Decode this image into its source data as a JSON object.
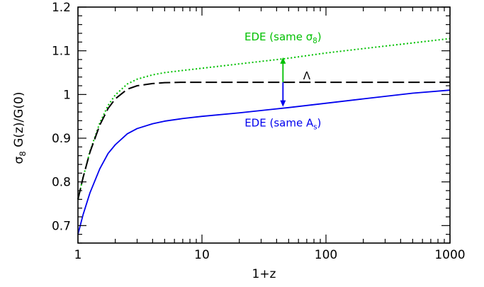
{
  "chart_data": {
    "type": "line",
    "xscale": "log",
    "xlabel": "1+z",
    "ylabel": "σ8 G(z)/G(0)",
    "xlim": [
      1,
      1000
    ],
    "ylim": [
      0.66,
      1.2
    ],
    "xticks": [
      1,
      10,
      100,
      1000
    ],
    "xtick_labels": [
      "1",
      "10",
      "100",
      "1000"
    ],
    "yticks": [
      0.7,
      0.8,
      0.9,
      1.0,
      1.1,
      1.2
    ],
    "ytick_labels": [
      "0.7",
      "0.8",
      "0.9",
      "1",
      "1.1",
      "1.2"
    ],
    "grid": false,
    "series": [
      {
        "name": "EDE (same σ8)",
        "color": "#00c000",
        "style": "dotted",
        "x": [
          1,
          1.1,
          1.25,
          1.5,
          1.75,
          2,
          2.5,
          3,
          4,
          5,
          7,
          10,
          20,
          50,
          100,
          200,
          500,
          1000
        ],
        "y": [
          0.76,
          0.81,
          0.87,
          0.935,
          0.975,
          0.999,
          1.024,
          1.035,
          1.045,
          1.05,
          1.055,
          1.06,
          1.07,
          1.083,
          1.095,
          1.105,
          1.118,
          1.128
        ]
      },
      {
        "name": "Λ",
        "color": "#000000",
        "style": "dashed",
        "x": [
          1,
          1.1,
          1.25,
          1.5,
          1.75,
          2,
          2.5,
          3,
          4,
          5,
          7,
          10,
          20,
          50,
          100,
          200,
          500,
          1000
        ],
        "y": [
          0.76,
          0.81,
          0.868,
          0.93,
          0.968,
          0.99,
          1.012,
          1.02,
          1.025,
          1.027,
          1.028,
          1.028,
          1.028,
          1.028,
          1.028,
          1.028,
          1.028,
          1.028
        ]
      },
      {
        "name": "EDE (same As)",
        "color": "#0000ee",
        "style": "solid",
        "x": [
          1,
          1.1,
          1.25,
          1.5,
          1.75,
          2,
          2.5,
          3,
          4,
          5,
          7,
          10,
          20,
          50,
          100,
          200,
          500,
          1000
        ],
        "y": [
          0.68,
          0.725,
          0.775,
          0.83,
          0.865,
          0.885,
          0.91,
          0.922,
          0.933,
          0.939,
          0.945,
          0.95,
          0.958,
          0.97,
          0.98,
          0.99,
          1.003,
          1.01
        ]
      }
    ],
    "annotations": [
      {
        "text": "EDE (same σ8)",
        "color": "#00c000",
        "x": 45,
        "y": 1.132
      },
      {
        "text": "Λ",
        "color": "#000000",
        "x": 70,
        "y": 1.043
      },
      {
        "text": "EDE (same As)",
        "color": "#0000ee",
        "x": 45,
        "y": 0.935
      }
    ],
    "arrows": [
      {
        "color": "#00c000",
        "x": 45,
        "from": 1.028,
        "to": 1.085
      },
      {
        "color": "#0000ee",
        "x": 45,
        "from": 1.028,
        "to": 0.972
      }
    ]
  }
}
